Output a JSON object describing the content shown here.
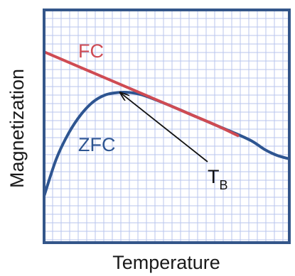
{
  "chart_data": {
    "type": "line",
    "title": "",
    "xlabel": "Temperature",
    "ylabel": "Magnetization",
    "xlim": [
      0,
      100
    ],
    "ylim": [
      0,
      100
    ],
    "grid": true,
    "series": [
      {
        "name": "FC",
        "color": "#cf4b53",
        "x": [
          0,
          10,
          20,
          30,
          40,
          50,
          60,
          70,
          79
        ],
        "y": [
          82,
          77.5,
          73,
          68.5,
          64,
          59.5,
          55,
          50.5,
          46
        ]
      },
      {
        "name": "ZFC",
        "color": "#2e5591",
        "x": [
          0,
          5,
          10,
          15,
          20,
          25,
          30,
          35,
          40,
          50,
          60,
          70,
          79,
          85,
          90,
          95,
          100
        ],
        "y": [
          20,
          36,
          47,
          55,
          60.5,
          63.5,
          64.5,
          64.5,
          63.5,
          59.5,
          55,
          50.5,
          46.5,
          43.5,
          40,
          37.5,
          36
        ]
      }
    ],
    "annotations": [
      {
        "text": "T",
        "subscript": "B",
        "arrow_to": {
          "x": 31,
          "y": 64.5
        }
      }
    ],
    "series_label_positions": {
      "FC": "upper-left",
      "ZFC": "center-left"
    },
    "frame_color": "#34568a",
    "grid_color": "#b9c5ee"
  }
}
